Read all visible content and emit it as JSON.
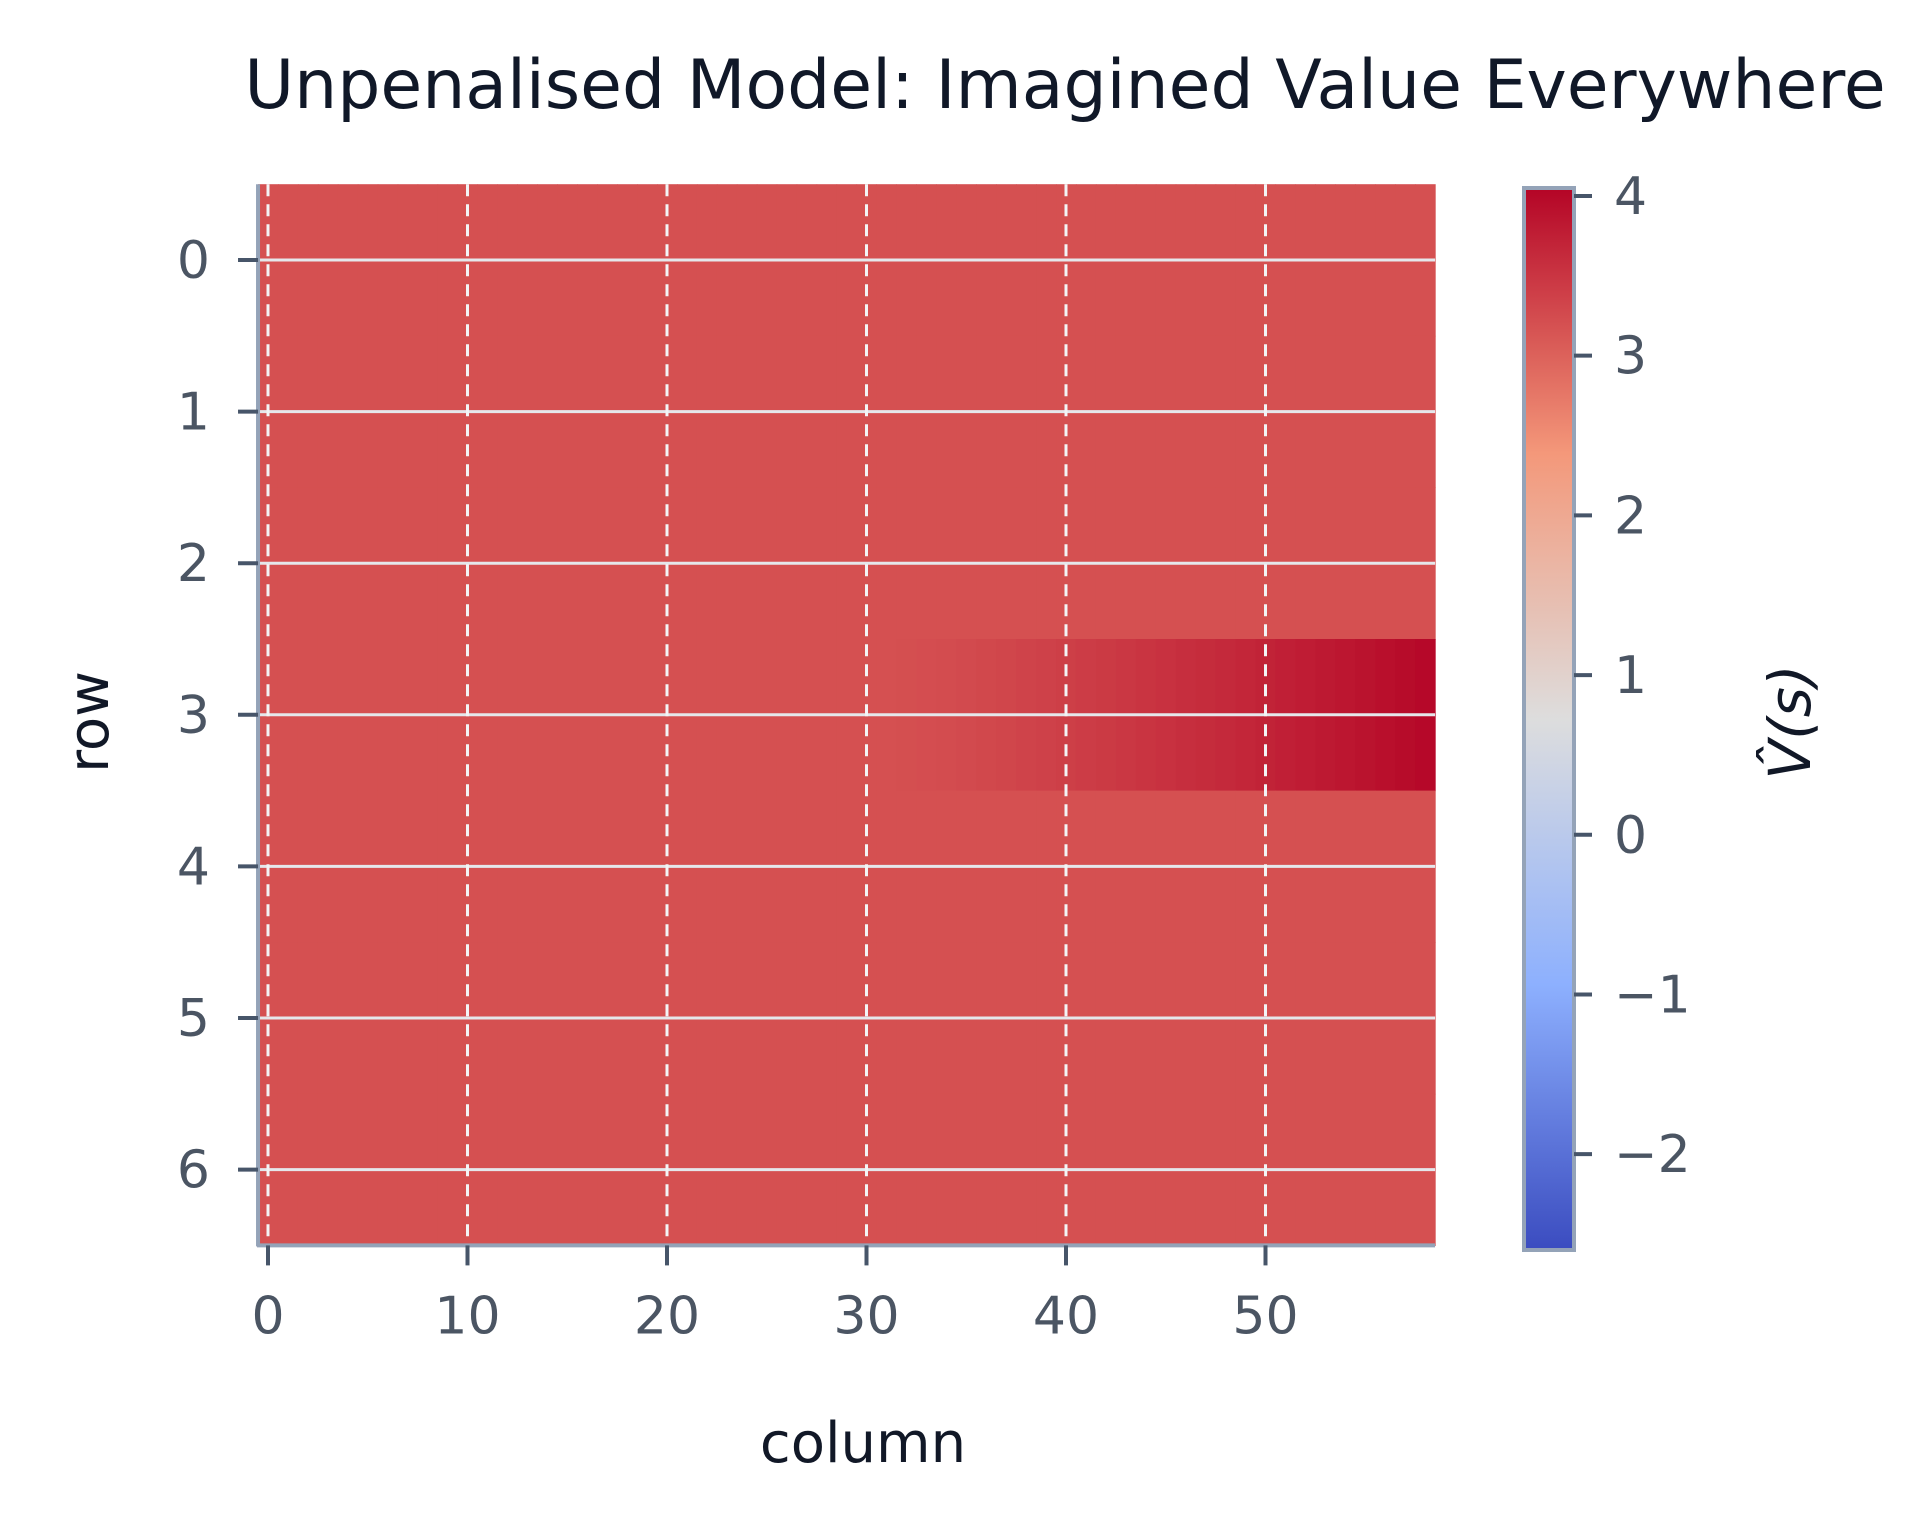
{
  "chart_data": {
    "type": "heatmap",
    "title": "Unpenalised Model: Imagined Value Everywhere",
    "xlabel": "column",
    "ylabel": "row",
    "colorbar_label": "V̂(s)",
    "colormap": "coolwarm",
    "color_range": [
      -2.6,
      4.05
    ],
    "n_rows": 7,
    "n_cols": 59,
    "base_value": 3.2,
    "highlight": {
      "row": 3,
      "col_start": 31,
      "col_end": 58,
      "value_start": 3.2,
      "value_end": 4.0
    },
    "x_ticks": [
      0,
      10,
      20,
      30,
      40,
      50
    ],
    "y_ticks": [
      0,
      1,
      2,
      3,
      4,
      5,
      6
    ],
    "colorbar_ticks": [
      4,
      3,
      2,
      1,
      0,
      -1,
      -2
    ],
    "colorbar_tick_labels": [
      "4",
      "3",
      "2",
      "1",
      "0",
      "−1",
      "−2"
    ],
    "grid": {
      "horizontal": "solid",
      "vertical": "dashed"
    }
  }
}
